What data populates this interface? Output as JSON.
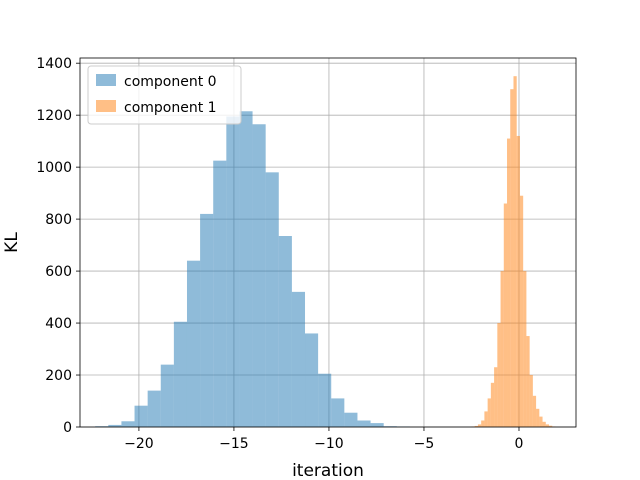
{
  "chart_data": {
    "type": "bar",
    "xlabel": "iteration",
    "ylabel": "KL",
    "xlim": [
      -23.1,
      3.0
    ],
    "ylim": [
      0,
      1420
    ],
    "xticks": [
      -20,
      -15,
      -10,
      -5,
      0
    ],
    "xtick_labels": [
      "−20",
      "−15",
      "−10",
      "−5",
      "0"
    ],
    "yticks": [
      0,
      200,
      400,
      600,
      800,
      1000,
      1200,
      1400
    ],
    "ytick_labels": [
      "0",
      "200",
      "400",
      "600",
      "800",
      "1000",
      "1200",
      "1400"
    ],
    "grid": true,
    "legend_position": "top-left",
    "series": [
      {
        "name": "component 0",
        "color": "#1f77b4",
        "alpha": 0.5,
        "bin_edges": [
          -22.3,
          -21.61,
          -20.92,
          -20.23,
          -19.54,
          -18.85,
          -18.16,
          -17.47,
          -16.78,
          -16.09,
          -15.4,
          -14.71,
          -14.02,
          -13.33,
          -12.64,
          -11.95,
          -11.26,
          -10.57,
          -9.88,
          -9.19,
          -8.5,
          -7.81,
          -7.12,
          -6.43,
          -5.74
        ],
        "counts": [
          3,
          8,
          22,
          82,
          140,
          240,
          405,
          640,
          820,
          1025,
          1195,
          1215,
          1165,
          980,
          735,
          520,
          360,
          205,
          110,
          55,
          25,
          15,
          3,
          2
        ]
      },
      {
        "name": "component 1",
        "color": "#ff7f0e",
        "alpha": 0.5,
        "bin_edges": [
          -2.5,
          -2.33,
          -2.16,
          -1.99,
          -1.82,
          -1.65,
          -1.48,
          -1.31,
          -1.14,
          -0.97,
          -0.8,
          -0.63,
          -0.46,
          -0.29,
          -0.12,
          0.05,
          0.22,
          0.39,
          0.56,
          0.73,
          0.9,
          1.07,
          1.24,
          1.41,
          1.58,
          1.75,
          1.92
        ],
        "counts": [
          2,
          4,
          10,
          25,
          60,
          110,
          170,
          230,
          400,
          600,
          860,
          1110,
          1300,
          1350,
          1120,
          890,
          600,
          350,
          200,
          120,
          70,
          40,
          20,
          10,
          5,
          2
        ]
      }
    ]
  }
}
